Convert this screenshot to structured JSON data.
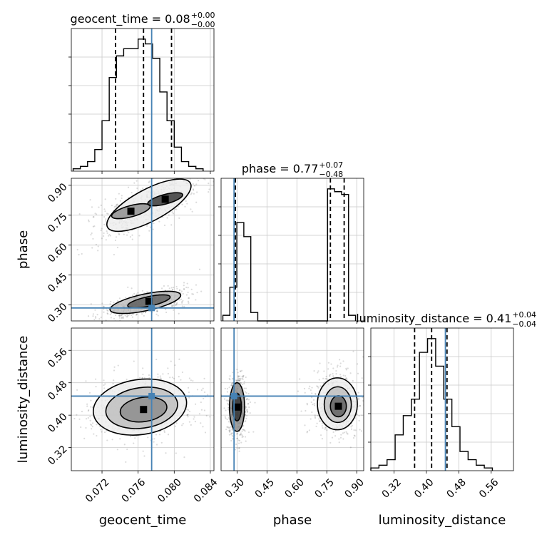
{
  "chart_data": {
    "type": "corner",
    "parameters": [
      "geocent_time",
      "phase",
      "luminosity_distance"
    ],
    "truths": {
      "geocent_time": 0.0775,
      "phase": 0.285,
      "luminosity_distance": 0.447
    },
    "truth_color": "#4682b4",
    "ranges": {
      "geocent_time": [
        0.0686,
        0.0844
      ],
      "phase": [
        0.22,
        0.935
      ],
      "luminosity_distance": [
        0.263,
        0.615
      ]
    },
    "ticks": {
      "geocent_time": {
        "values": [
          0.072,
          0.076,
          0.08,
          0.084
        ],
        "labels": [
          "0.072",
          "0.076",
          "0.080",
          "0.084"
        ]
      },
      "phase": {
        "values": [
          0.3,
          0.45,
          0.6,
          0.75,
          0.9
        ],
        "labels": [
          "0.30",
          "0.45",
          "0.60",
          "0.75",
          "0.90"
        ]
      },
      "luminosity_distance": {
        "values": [
          0.32,
          0.4,
          0.48,
          0.56
        ],
        "labels": [
          "0.32",
          "0.40",
          "0.48",
          "0.56"
        ]
      }
    },
    "titles": [
      {
        "param": "geocent_time",
        "text": "geocent_time = 0.08",
        "plus": "+0.00",
        "minus": "−0.00"
      },
      {
        "param": "phase",
        "text": "phase = 0.77",
        "plus": "+0.07",
        "minus": "−0.48"
      },
      {
        "param": "luminosity_distance",
        "text": "luminosity_distance = 0.41",
        "plus": "+0.04",
        "minus": "−0.04"
      }
    ],
    "axis_labels": {
      "x": [
        "geocent_time",
        "phase",
        "luminosity_distance"
      ],
      "y": [
        "phase",
        "luminosity_distance"
      ]
    },
    "quantiles": {
      "geocent_time": [
        0.0735,
        0.0766,
        0.0797
      ],
      "phase": [
        0.292,
        0.768,
        0.837
      ],
      "luminosity_distance": [
        0.371,
        0.413,
        0.451
      ]
    },
    "histograms": {
      "geocent_time": {
        "bin_edges": [
          0.0688,
          0.0696,
          0.0704,
          0.0712,
          0.072,
          0.0728,
          0.0736,
          0.0744,
          0.0752,
          0.076,
          0.0768,
          0.0776,
          0.0784,
          0.0792,
          0.08,
          0.0808,
          0.0816,
          0.0824,
          0.0832
        ],
        "counts": [
          1,
          2,
          4,
          9,
          21,
          39,
          48,
          51,
          51,
          55,
          53,
          47,
          33,
          21,
          10,
          4,
          2,
          1
        ]
      },
      "phase": {
        "bin_edges": [
          0.229,
          0.264,
          0.299,
          0.334,
          0.369,
          0.404,
          0.439,
          0.474,
          0.509,
          0.544,
          0.579,
          0.614,
          0.649,
          0.684,
          0.719,
          0.754,
          0.789,
          0.824,
          0.859,
          0.894
        ],
        "counts": [
          2,
          12,
          35,
          30,
          3,
          0,
          0,
          0,
          0,
          0,
          0,
          0,
          0,
          0,
          0,
          47,
          46,
          45,
          2
        ]
      },
      "luminosity_distance": {
        "bin_edges": [
          0.263,
          0.283,
          0.303,
          0.323,
          0.343,
          0.363,
          0.383,
          0.403,
          0.423,
          0.443,
          0.463,
          0.483,
          0.503,
          0.523,
          0.543,
          0.563
        ],
        "counts": [
          1,
          2,
          4,
          13,
          20,
          26,
          43,
          48,
          38,
          26,
          16,
          7,
          4,
          2,
          1
        ]
      }
    },
    "contours": {
      "phase_vs_geocent_time": [
        {
          "cx": 0.0772,
          "cy": 0.8,
          "rx": 0.0052,
          "ry": 0.08,
          "rot": -28
        },
        {
          "cx": 0.0752,
          "cy": 0.77,
          "rx": 0.0022,
          "ry": 0.028,
          "rot": -15
        },
        {
          "cx": 0.079,
          "cy": 0.83,
          "rx": 0.002,
          "ry": 0.024,
          "rot": -15
        },
        {
          "cx": 0.0768,
          "cy": 0.313,
          "rx": 0.004,
          "ry": 0.042,
          "rot": -12
        },
        {
          "cx": 0.0772,
          "cy": 0.318,
          "rx": 0.0024,
          "ry": 0.024,
          "rot": -12
        }
      ],
      "luminosity_distance_vs_geocent_time": [
        {
          "cx": 0.0762,
          "cy": 0.42,
          "rx": 0.0052,
          "ry": 0.068,
          "rot": -8
        },
        {
          "cx": 0.0764,
          "cy": 0.418,
          "rx": 0.004,
          "ry": 0.05,
          "rot": -8
        },
        {
          "cx": 0.0766,
          "cy": 0.414,
          "rx": 0.0026,
          "ry": 0.03,
          "rot": -8
        }
      ],
      "luminosity_distance_vs_phase": [
        {
          "cx": 0.3,
          "cy": 0.42,
          "rx": 0.038,
          "ry": 0.06,
          "rot": 0
        },
        {
          "cx": 0.3,
          "cy": 0.42,
          "rx": 0.022,
          "ry": 0.034,
          "rot": 0
        },
        {
          "cx": 0.803,
          "cy": 0.428,
          "rx": 0.1,
          "ry": 0.064,
          "rot": 0
        },
        {
          "cx": 0.805,
          "cy": 0.426,
          "rx": 0.068,
          "ry": 0.044,
          "rot": 0
        },
        {
          "cx": 0.808,
          "cy": 0.422,
          "rx": 0.04,
          "ry": 0.026,
          "rot": 0
        }
      ]
    },
    "grid": true
  }
}
